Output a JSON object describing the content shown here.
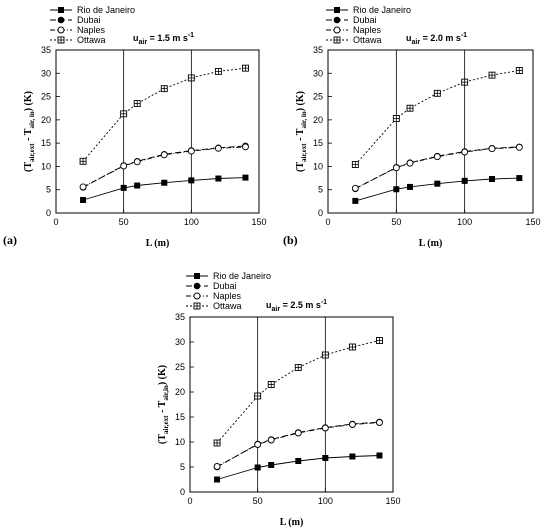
{
  "chart_data": [
    {
      "type": "line",
      "panel_label": "(a)",
      "wind_label": {
        "main": "u",
        "sub": "air",
        "rest": " = 1.5 m s",
        "sup": "-1"
      },
      "xlabel": "L (m)",
      "ylabel": {
        "open": "(T",
        "sub1": "air,ext",
        "mid": " - T",
        "sub2": "air, in",
        "close": ")  (K)"
      },
      "xlim": [
        0,
        150
      ],
      "ylim": [
        0,
        35
      ],
      "xticks": [
        "0",
        "50",
        "100",
        "150"
      ],
      "yticks": [
        "0",
        "5",
        "10",
        "15",
        "20",
        "25",
        "30",
        "35"
      ],
      "grid": "vertical",
      "x": [
        20,
        50,
        60,
        80,
        100,
        120,
        140
      ],
      "series": [
        {
          "name": "Rio de Janeiro",
          "marker": "filled-square",
          "line": "solid",
          "values": [
            2.8,
            5.4,
            5.9,
            6.5,
            7.0,
            7.4,
            7.6
          ]
        },
        {
          "name": "Dubai",
          "marker": "filled-circle",
          "line": "dashed",
          "values": [
            5.5,
            10.2,
            11.1,
            12.6,
            13.4,
            14.0,
            14.4
          ]
        },
        {
          "name": "Naples",
          "marker": "open-circle",
          "line": "dash-dot",
          "values": [
            5.6,
            10.1,
            11.0,
            12.5,
            13.3,
            13.9,
            14.2
          ]
        },
        {
          "name": "Ottawa",
          "marker": "crossed-square",
          "line": "dotted",
          "values": [
            11.1,
            21.3,
            23.5,
            26.7,
            29.0,
            30.4,
            31.1
          ]
        }
      ]
    },
    {
      "type": "line",
      "panel_label": "(b)",
      "wind_label": {
        "main": "u",
        "sub": "air",
        "rest": " = 2.0 m s",
        "sup": "-1"
      },
      "xlabel": "L (m)",
      "ylabel": {
        "open": "(T",
        "sub1": "air,ext",
        "mid": " - T",
        "sub2": "air, in",
        "close": ")  (K)"
      },
      "xlim": [
        0,
        150
      ],
      "ylim": [
        0,
        35
      ],
      "xticks": [
        "0",
        "50",
        "100",
        "150"
      ],
      "yticks": [
        "0",
        "5",
        "10",
        "15",
        "20",
        "25",
        "30",
        "35"
      ],
      "grid": "vertical",
      "x": [
        20,
        50,
        60,
        80,
        100,
        120,
        140
      ],
      "series": [
        {
          "name": "Rio de Janeiro",
          "marker": "filled-square",
          "line": "solid",
          "values": [
            2.6,
            5.1,
            5.6,
            6.3,
            6.9,
            7.3,
            7.5
          ]
        },
        {
          "name": "Dubai",
          "marker": "filled-circle",
          "line": "dashed",
          "values": [
            5.2,
            9.8,
            10.8,
            12.2,
            13.2,
            13.9,
            14.2
          ]
        },
        {
          "name": "Naples",
          "marker": "open-circle",
          "line": "dash-dot",
          "values": [
            5.3,
            9.7,
            10.7,
            12.1,
            13.1,
            13.8,
            14.1
          ]
        },
        {
          "name": "Ottawa",
          "marker": "crossed-square",
          "line": "dotted",
          "values": [
            10.4,
            20.3,
            22.5,
            25.7,
            28.1,
            29.6,
            30.6
          ]
        }
      ]
    },
    {
      "type": "line",
      "panel_label": "",
      "wind_label": {
        "main": "u",
        "sub": "air",
        "rest": " = 2.5 m s",
        "sup": "-1"
      },
      "xlabel": "L (m)",
      "ylabel": {
        "open": "(T",
        "sub1": "air,ext",
        "mid": " - T",
        "sub2": "air,in",
        "close": ")  (K)"
      },
      "xlim": [
        0,
        150
      ],
      "ylim": [
        0,
        35
      ],
      "xticks": [
        "0",
        "50",
        "100",
        "150"
      ],
      "yticks": [
        "0",
        "5",
        "10",
        "15",
        "20",
        "25",
        "30",
        "35"
      ],
      "grid": "vertical",
      "x": [
        20,
        50,
        60,
        80,
        100,
        120,
        140
      ],
      "series": [
        {
          "name": "Rio de Janeiro",
          "marker": "filled-square",
          "line": "solid",
          "values": [
            2.5,
            4.9,
            5.4,
            6.2,
            6.8,
            7.1,
            7.3
          ]
        },
        {
          "name": "Dubai",
          "marker": "filled-circle",
          "line": "dashed",
          "values": [
            5.0,
            9.6,
            10.5,
            11.9,
            12.9,
            13.6,
            14.0
          ]
        },
        {
          "name": "Naples",
          "marker": "open-circle",
          "line": "dash-dot",
          "values": [
            5.1,
            9.5,
            10.4,
            11.8,
            12.8,
            13.5,
            13.9
          ]
        },
        {
          "name": "Ottawa",
          "marker": "crossed-square",
          "line": "dotted",
          "values": [
            9.8,
            19.2,
            21.5,
            24.9,
            27.4,
            29.0,
            30.3
          ]
        }
      ]
    }
  ]
}
